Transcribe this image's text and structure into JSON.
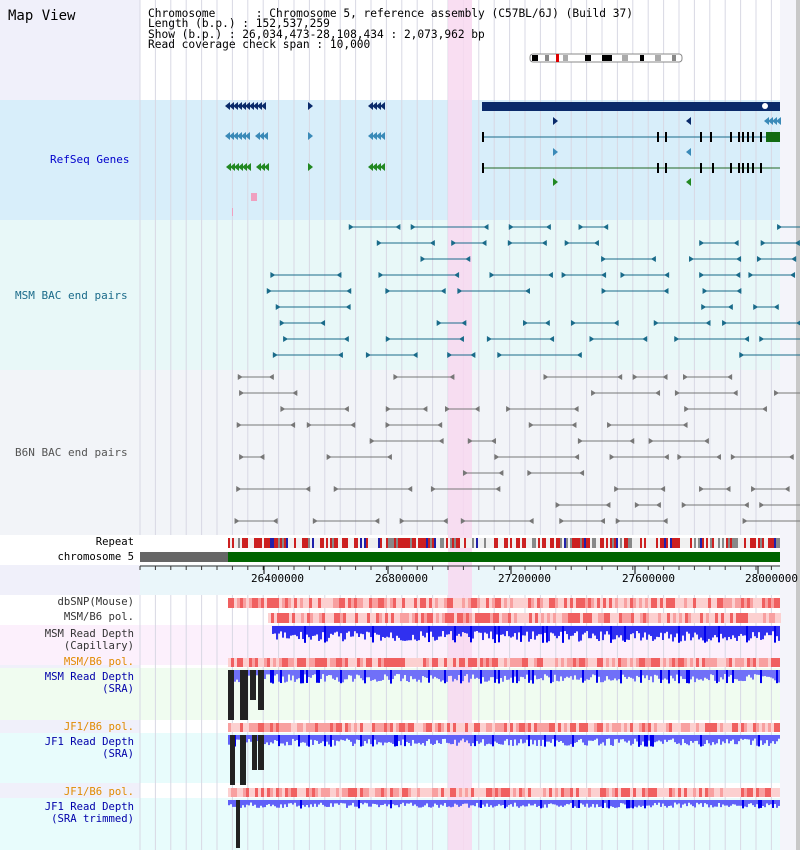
{
  "view_title": "Map View",
  "info": {
    "chromosome": "Chromosome      : Chromosome 5, reference assembly (C57BL/6J) (Build 37)",
    "length": "Length (b.p.) : 152,537,259",
    "show": "Show (b.p.) : 26,034,473-28,108,434 : 2,073,962 bp",
    "span": "Read coverage check span : 10,000"
  },
  "colors": {
    "refseq_label": "#0000cc",
    "msm_bac_label": "#1a6b8a",
    "b6n_bac_label": "#666666",
    "orange_label": "#e08a00",
    "blue_label": "#0000aa",
    "highlight": "#f8d8f0",
    "refseq_bg": "#d8eefa",
    "msm_bac_bg": "#e8f8f8",
    "b6n_bg": "#f2f4f8"
  },
  "tracks": {
    "refseq": "RefSeq Genes",
    "msm_bac": "MSM BAC end pairs",
    "b6n_bac": "B6N BAC end pairs",
    "repeat": "Repeat",
    "chromosome": "chromosome 5",
    "dbsnp": "dbSNP(Mouse)",
    "msm_b6_pol_1": "MSM/B6 pol.",
    "msm_read_depth_cap_1": "MSM Read Depth",
    "msm_read_depth_cap_2": "(Capillary)",
    "msm_b6_pol_2": "MSM/B6 pol.",
    "msm_read_depth_sra_1": "MSM Read Depth",
    "msm_read_depth_sra_2": "(SRA)",
    "jf1_b6_pol_1": "JF1/B6 pol.",
    "jf1_read_depth_sra_1": "JF1 Read Depth",
    "jf1_read_depth_sra_2": "(SRA)",
    "jf1_b6_pol_2": "JF1/B6 pol.",
    "jf1_read_depth_trim_1": "JF1 Read Depth",
    "jf1_read_depth_trim_2": "(SRA trimmed)"
  },
  "ruler_labels": [
    "26400000",
    "26800000",
    "27200000",
    "27600000",
    "28000000"
  ]
}
